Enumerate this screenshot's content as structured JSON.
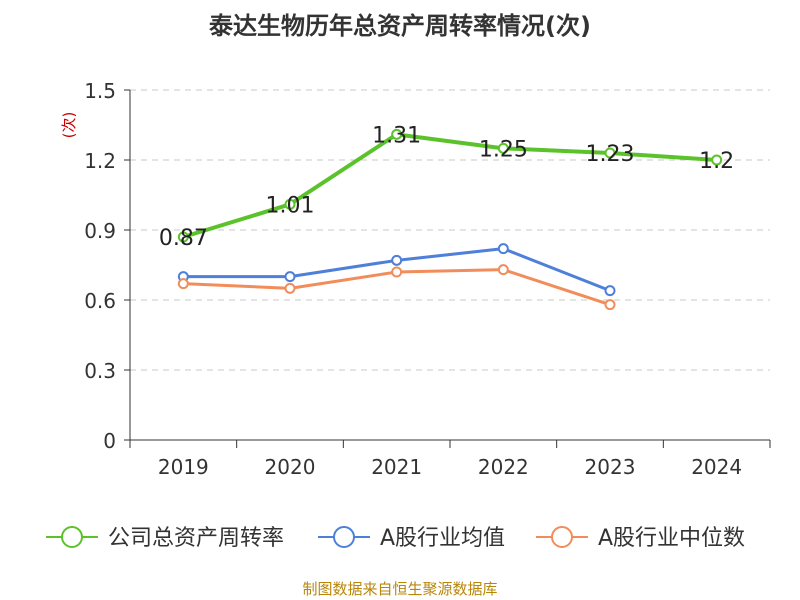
{
  "chart_data": {
    "type": "line",
    "title": "泰达生物历年总资产周转率情况(次)",
    "ylabel": "(次)",
    "xlabel": "",
    "categories": [
      "2019",
      "2020",
      "2021",
      "2022",
      "2023",
      "2024"
    ],
    "ylim": [
      0,
      1.5
    ],
    "yticks": [
      0,
      0.3,
      0.6,
      0.9,
      1.2,
      1.5
    ],
    "ytick_labels": [
      "0",
      "0.3",
      "0.6",
      "0.9",
      "1.2",
      "1.5"
    ],
    "grid": true,
    "legend_position": "bottom",
    "series": [
      {
        "name": "公司总资产周转率",
        "color": "#5cc22b",
        "values": [
          0.87,
          1.01,
          1.31,
          1.25,
          1.23,
          1.2
        ],
        "labels": [
          "0.87",
          "1.01",
          "1.31",
          "1.25",
          "1.23",
          "1.2"
        ]
      },
      {
        "name": "A股行业均值",
        "color": "#4e7fd9",
        "values": [
          0.7,
          0.7,
          0.77,
          0.82,
          0.64,
          null
        ]
      },
      {
        "name": "A股行业中位数",
        "color": "#f28c5a",
        "values": [
          0.67,
          0.65,
          0.72,
          0.73,
          0.58,
          null
        ]
      }
    ]
  },
  "source": "制图数据来自恒生聚源数据库"
}
